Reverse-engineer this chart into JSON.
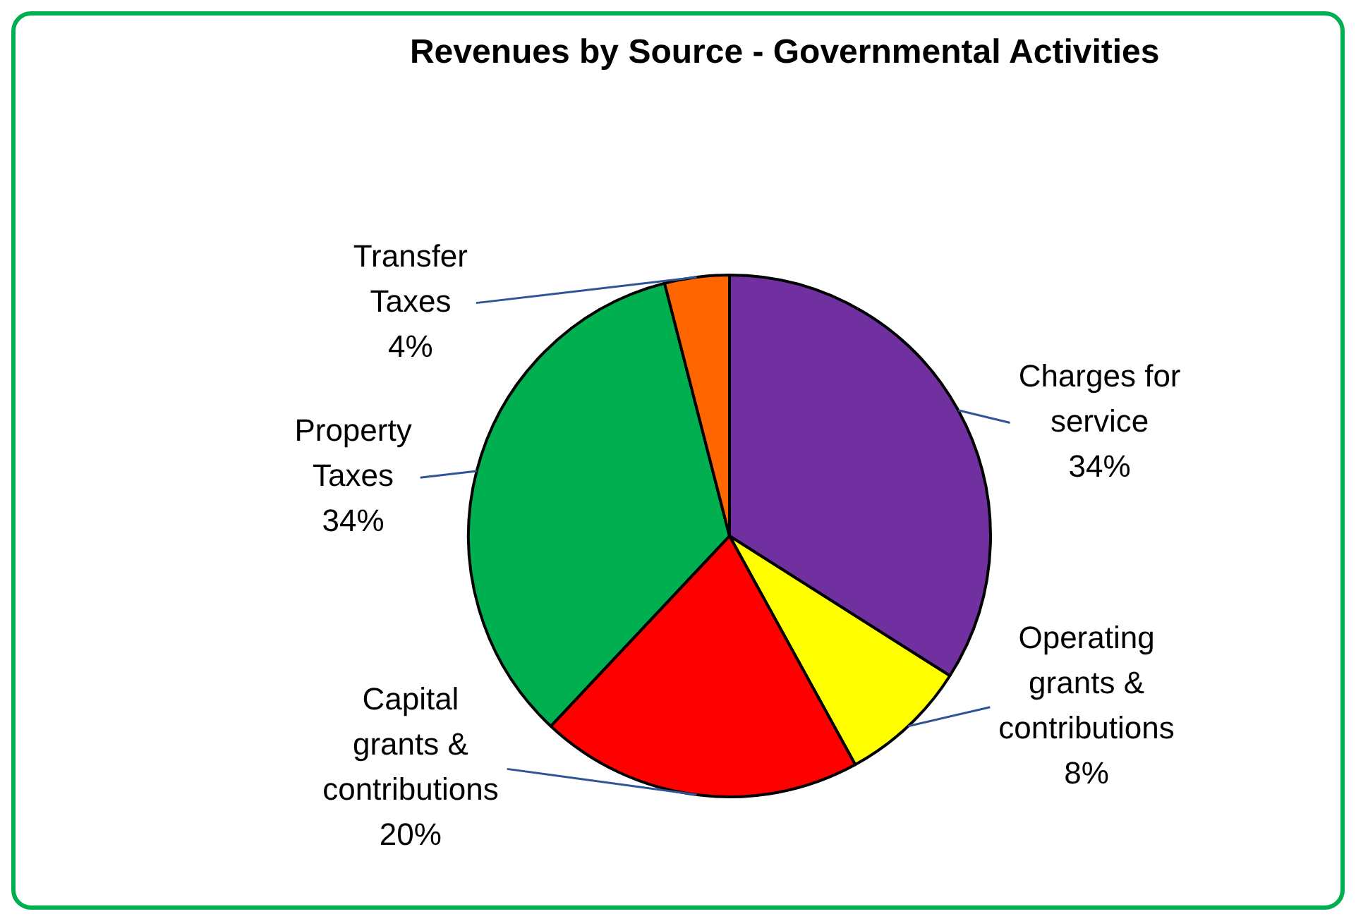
{
  "chart_data": {
    "type": "pie",
    "title": "Revenues by Source - Governmental Activities",
    "categories": [
      "Charges for service",
      "Operating grants & contributions",
      "Capital grants & contributions",
      "Property Taxes",
      "Transfer Taxes"
    ],
    "values": [
      34,
      8,
      20,
      34,
      4
    ],
    "value_labels": [
      "34%",
      "8%",
      "20%",
      "34%",
      "4%"
    ],
    "colors": [
      "#7030a0",
      "#ffff00",
      "#ff0000",
      "#00b050",
      "#ff6600"
    ],
    "legend": false
  }
}
